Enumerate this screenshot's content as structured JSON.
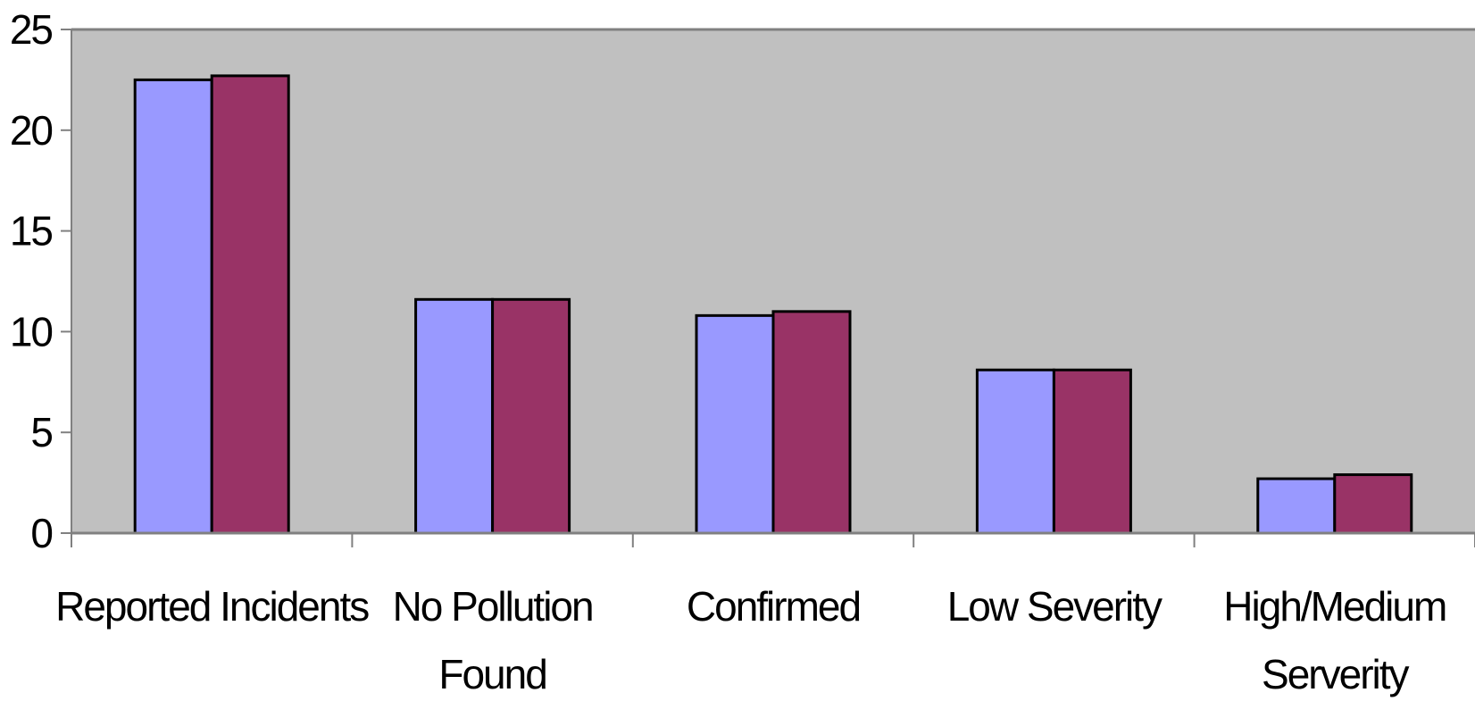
{
  "chart_data": {
    "type": "bar",
    "categories": [
      [
        "Reported Incidents"
      ],
      [
        "No Pollution",
        "Found"
      ],
      [
        "Confirmed"
      ],
      [
        "Low Severity"
      ],
      [
        "High/Medium",
        "Serverity"
      ]
    ],
    "series": [
      {
        "values": [
          22.5,
          11.6,
          10.8,
          8.1,
          2.7
        ]
      },
      {
        "values": [
          22.7,
          11.6,
          11.0,
          8.1,
          2.9
        ]
      }
    ],
    "colors": {
      "series": [
        "#9999FF",
        "#993366"
      ],
      "plot_bg": "#C0C0C0",
      "axis": "#808080"
    },
    "yticks": [
      0,
      5,
      10,
      15,
      20,
      25
    ],
    "ylim": [
      0,
      25
    ],
    "grid": false,
    "legend": "none",
    "title": "",
    "xlabel": "",
    "ylabel": ""
  }
}
